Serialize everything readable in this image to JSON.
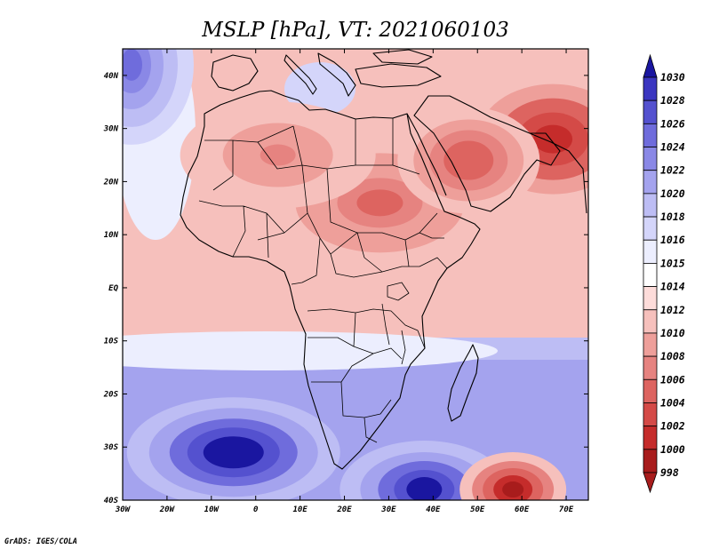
{
  "title": "MSLP [hPa], VT: 2021060103",
  "credit": "GrADS: IGES/COLA",
  "map": {
    "lon_range": [
      -30,
      75
    ],
    "lat_range": [
      -40,
      45
    ],
    "lon_ticks": [
      {
        "value": -30,
        "label": "30W"
      },
      {
        "value": -20,
        "label": "20W"
      },
      {
        "value": -10,
        "label": "10W"
      },
      {
        "value": 0,
        "label": "0"
      },
      {
        "value": 10,
        "label": "10E"
      },
      {
        "value": 20,
        "label": "20E"
      },
      {
        "value": 30,
        "label": "30E"
      },
      {
        "value": 40,
        "label": "40E"
      },
      {
        "value": 50,
        "label": "50E"
      },
      {
        "value": 60,
        "label": "60E"
      },
      {
        "value": 70,
        "label": "70E"
      }
    ],
    "lat_ticks": [
      {
        "value": 40,
        "label": "40N"
      },
      {
        "value": 30,
        "label": "30N"
      },
      {
        "value": 20,
        "label": "20N"
      },
      {
        "value": 10,
        "label": "10N"
      },
      {
        "value": 0,
        "label": "EQ"
      },
      {
        "value": -10,
        "label": "10S"
      },
      {
        "value": -20,
        "label": "20S"
      },
      {
        "value": -30,
        "label": "30S"
      },
      {
        "value": -40,
        "label": "40S"
      }
    ],
    "pressure_systems": [
      {
        "lon": -5,
        "lat": -31,
        "value": 1030
      },
      {
        "lon": 38,
        "lat": -38,
        "value": 1029
      },
      {
        "lon": -28,
        "lat": 42,
        "value": 1024
      },
      {
        "lon": 58,
        "lat": -38,
        "value": 998
      },
      {
        "lon": 67,
        "lat": 28,
        "value": 1000
      },
      {
        "lon": 28,
        "lat": 16,
        "value": 1004
      },
      {
        "lon": 5,
        "lat": 25,
        "value": 1006
      },
      {
        "lon": 48,
        "lat": 24,
        "value": 1003
      }
    ]
  },
  "colorbar": {
    "labels": [
      "1030",
      "1028",
      "1026",
      "1024",
      "1022",
      "1020",
      "1018",
      "1016",
      "1015",
      "1014",
      "1012",
      "1010",
      "1008",
      "1006",
      "1004",
      "1002",
      "1000",
      "998"
    ],
    "colors": [
      "#1a16a0",
      "#3b36c0",
      "#5451cf",
      "#6f6cdc",
      "#8a88e6",
      "#a4a3ee",
      "#bdbdf4",
      "#d4d5fa",
      "#eceefe",
      "#ffffff",
      "#fddcda",
      "#f6c0bc",
      "#ee9f9a",
      "#e68380",
      "#dd6460",
      "#d44a47",
      "#c52c2b",
      "#a81c1c"
    ]
  }
}
